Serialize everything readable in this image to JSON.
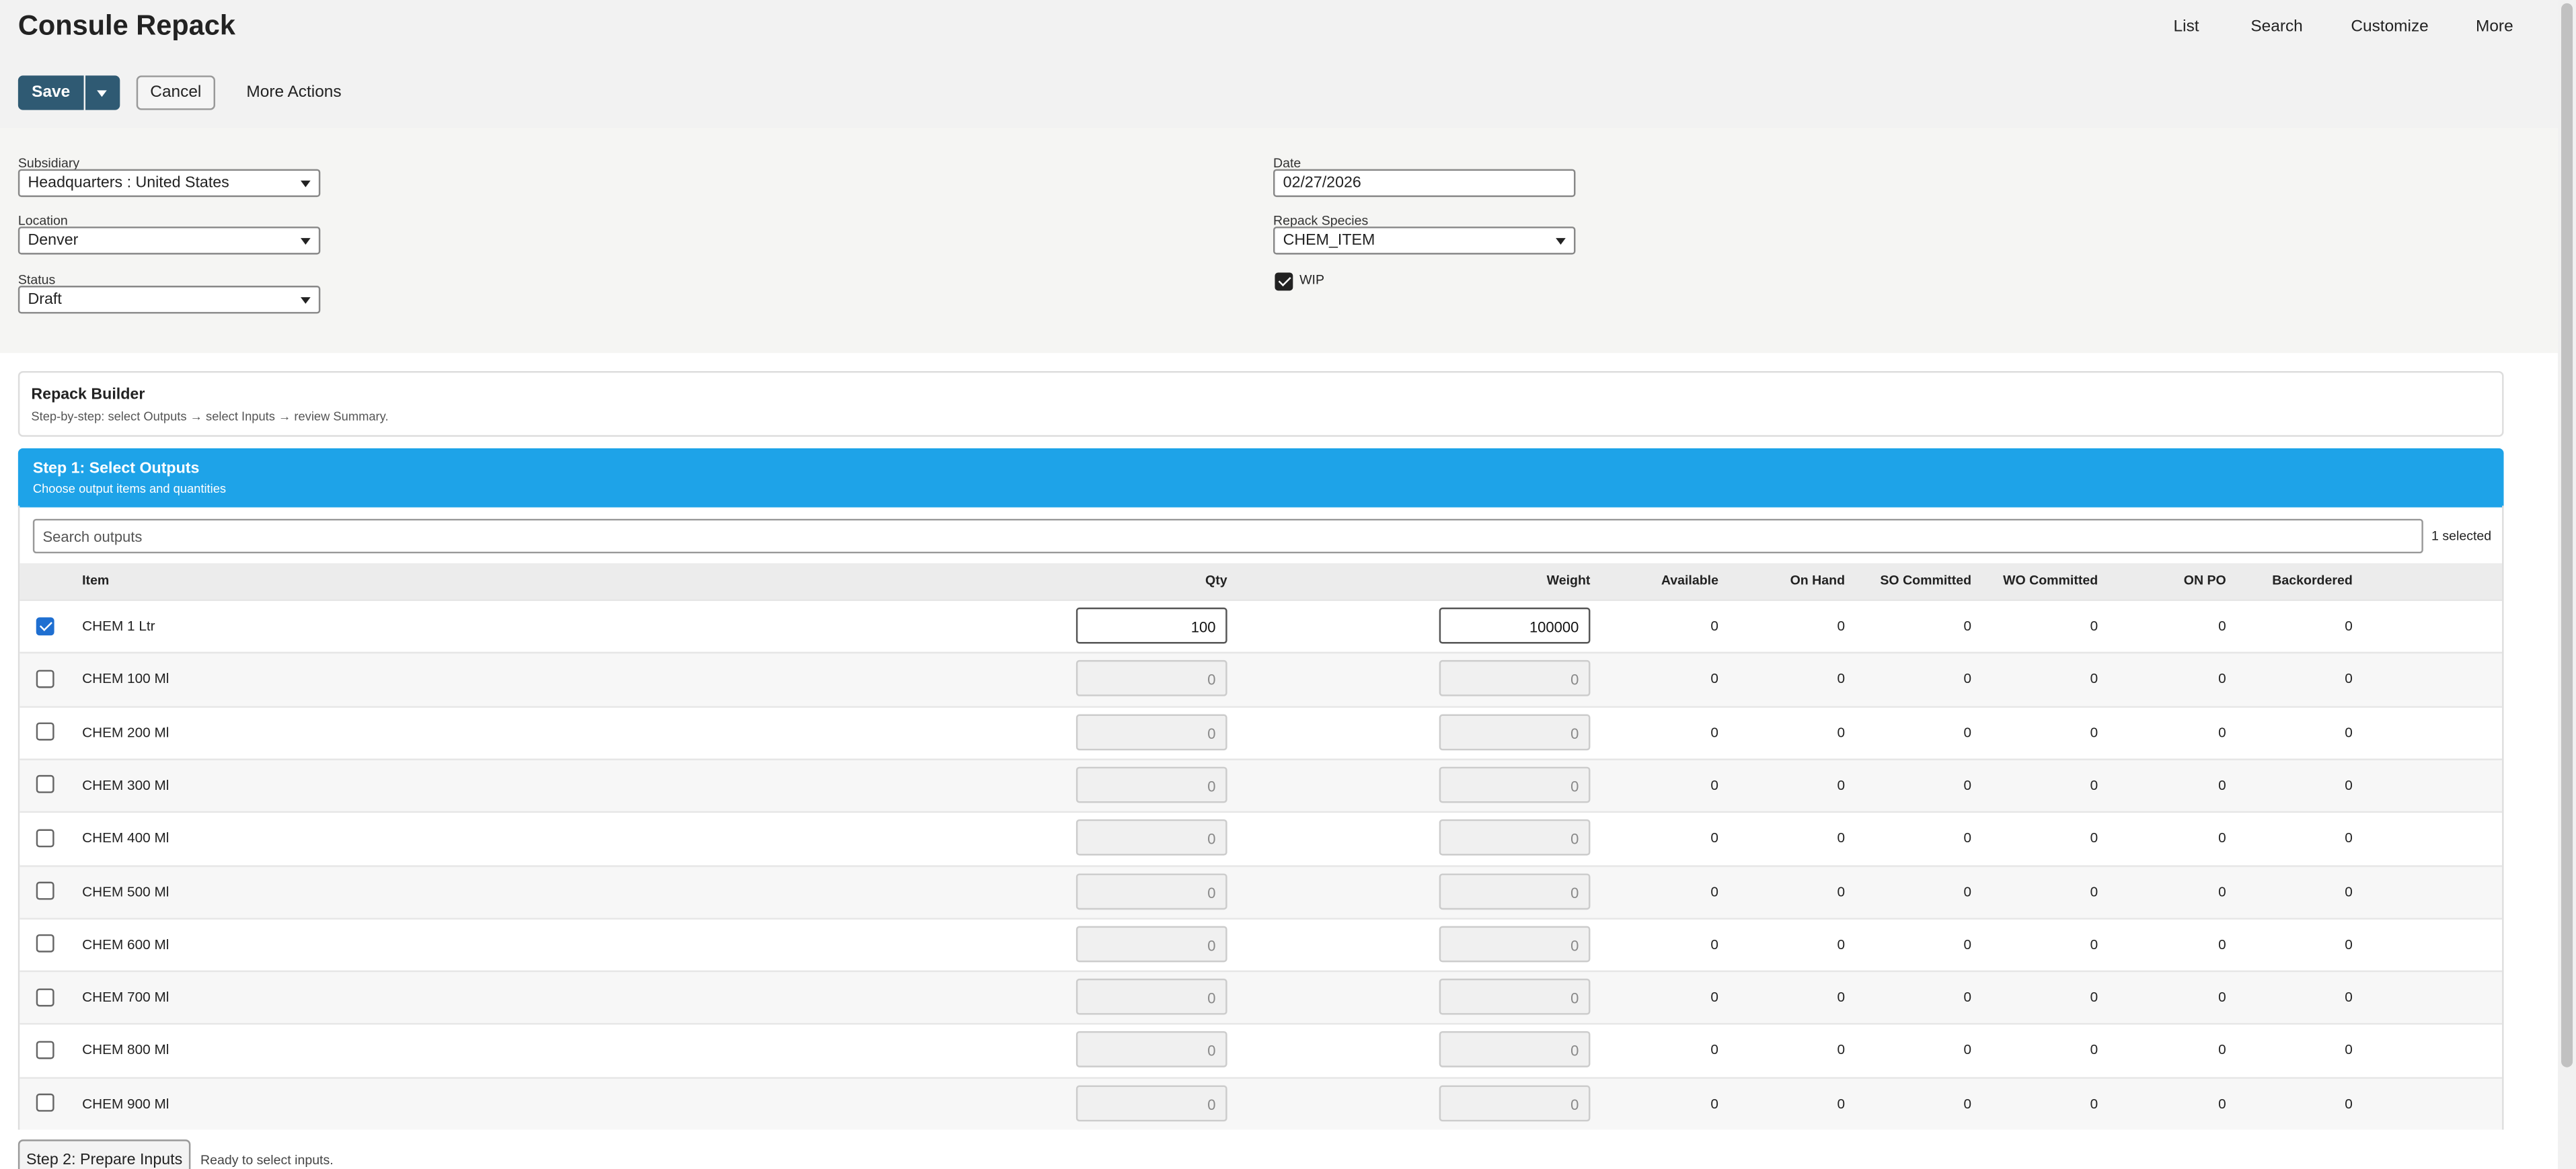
{
  "header": {
    "title": "Consule Repack",
    "nav": [
      "List",
      "Search",
      "Customize",
      "More"
    ]
  },
  "actions": {
    "save": "Save",
    "cancel": "Cancel",
    "more": "More Actions"
  },
  "form": {
    "left": [
      {
        "label": "Subsidiary",
        "value": "Headquarters : United States"
      },
      {
        "label": "Location",
        "value": "Denver"
      },
      {
        "label": "Status",
        "value": "Draft"
      }
    ],
    "date": {
      "label": "Date",
      "value": "02/27/2026"
    },
    "species": {
      "label": "Repack Species",
      "value": "CHEM_ITEM"
    },
    "wip": {
      "label": "WIP",
      "checked": true
    }
  },
  "builder": {
    "title": "Repack Builder",
    "subtitle": "Step-by-step: select Outputs → select Inputs → review Summary."
  },
  "step1": {
    "title": "Step 1: Select Outputs",
    "subtitle": "Choose output items and quantities",
    "search_placeholder": "Search outputs",
    "selected": "1 selected"
  },
  "table": {
    "columns": [
      "Item",
      "Qty",
      "Weight",
      "Available",
      "On Hand",
      "SO Committed",
      "WO Committed",
      "ON PO",
      "Backordered"
    ],
    "rows": [
      {
        "checked": true,
        "cells": [
          "CHEM 1 Ltr",
          100,
          100000,
          0,
          0,
          0,
          0,
          0,
          0
        ]
      },
      {
        "checked": false,
        "cells": [
          "CHEM 100 Ml",
          0,
          0,
          0,
          0,
          0,
          0,
          0,
          0
        ]
      },
      {
        "checked": false,
        "cells": [
          "CHEM 200 Ml",
          0,
          0,
          0,
          0,
          0,
          0,
          0,
          0
        ]
      },
      {
        "checked": false,
        "cells": [
          "CHEM 300 Ml",
          0,
          0,
          0,
          0,
          0,
          0,
          0,
          0
        ]
      },
      {
        "checked": false,
        "cells": [
          "CHEM 400 Ml",
          0,
          0,
          0,
          0,
          0,
          0,
          0,
          0
        ]
      },
      {
        "checked": false,
        "cells": [
          "CHEM 500 Ml",
          0,
          0,
          0,
          0,
          0,
          0,
          0,
          0
        ]
      },
      {
        "checked": false,
        "cells": [
          "CHEM 600 Ml",
          0,
          0,
          0,
          0,
          0,
          0,
          0,
          0
        ]
      },
      {
        "checked": false,
        "cells": [
          "CHEM 700 Ml",
          0,
          0,
          0,
          0,
          0,
          0,
          0,
          0
        ]
      },
      {
        "checked": false,
        "cells": [
          "CHEM 800 Ml",
          0,
          0,
          0,
          0,
          0,
          0,
          0,
          0
        ]
      },
      {
        "checked": false,
        "cells": [
          "CHEM 900 Ml",
          0,
          0,
          0,
          0,
          0,
          0,
          0,
          0
        ]
      }
    ]
  },
  "step2": {
    "button": "Step 2: Prepare Inputs",
    "status": "Ready to select inputs."
  }
}
